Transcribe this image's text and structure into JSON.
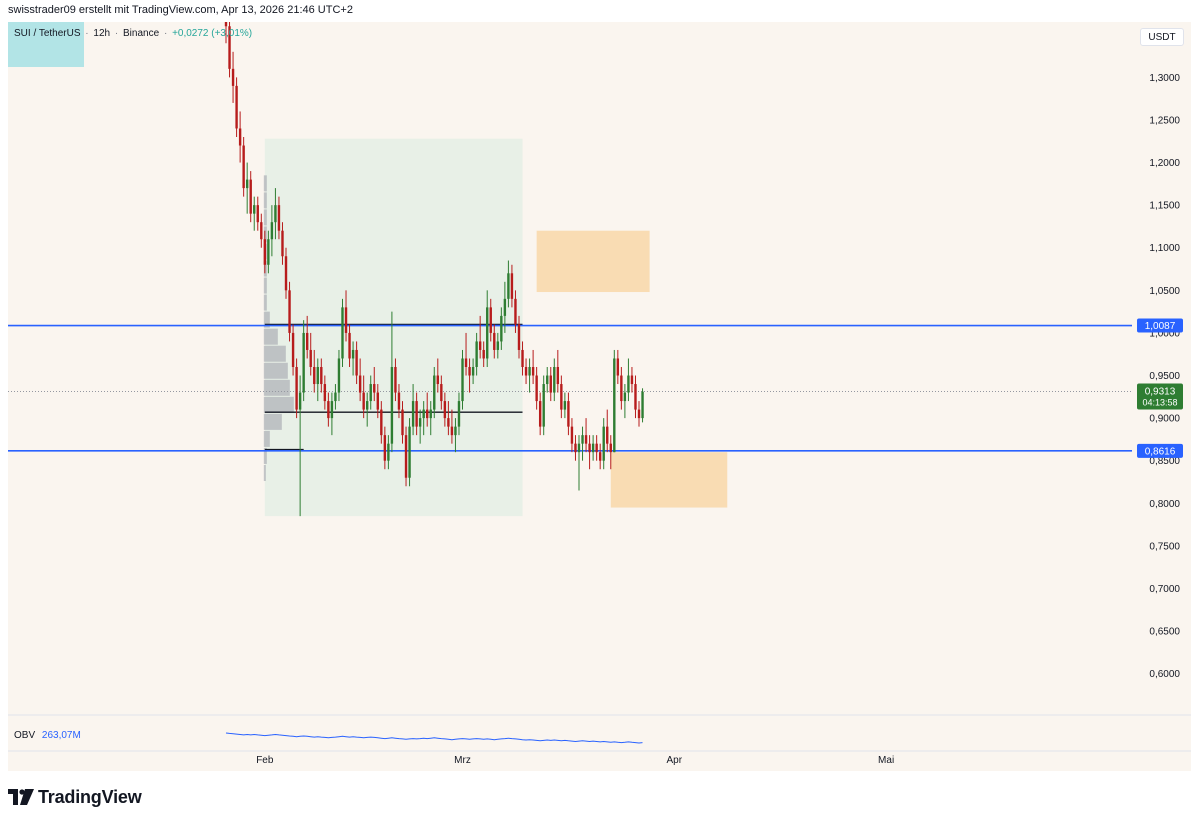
{
  "header": {
    "text": "swisstrader09 erstellt mit TradingView.com, Apr 13, 2026 21:46 UTC+2"
  },
  "legend": {
    "symbol": "SUI / TetherUS",
    "interval": "12h",
    "exchange": "Binance",
    "change": "+0,0272 (+3,01%)",
    "sep": "·"
  },
  "unit_button": "USDT",
  "obv": {
    "label": "OBV",
    "value": "263,07M"
  },
  "footer": {
    "brand": "TradingView"
  },
  "colors": {
    "background": "#faf5ef",
    "up": "#2e7d32",
    "down": "#b71c1c",
    "level": "#2962ff",
    "zone_orange": "#f8d7a8",
    "zone_green": "#e6efe5",
    "legend_box": "#b2e4e6",
    "price_label": "#2e7d32"
  },
  "chart_data": {
    "type": "candlestick",
    "symbol": "SUI / TetherUS",
    "interval": "12h",
    "ylim": [
      0.555,
      1.365
    ],
    "y_ticks": [
      "0,6000",
      "0,6500",
      "0,7000",
      "0,7500",
      "0,8000",
      "0,8500",
      "0,9000",
      "0,9500",
      "1,0000",
      "1,0500",
      "1,1000",
      "1,1500",
      "1,2000",
      "1,2500",
      "1,3000"
    ],
    "y_tick_values": [
      0.6,
      0.65,
      0.7,
      0.75,
      0.8,
      0.85,
      0.9,
      0.95,
      1.0,
      1.05,
      1.1,
      1.15,
      1.2,
      1.25,
      1.3
    ],
    "x_labels": [
      "Feb",
      "Mrz",
      "Apr",
      "Mai"
    ],
    "x_label_index": [
      11,
      67,
      127,
      187
    ],
    "levels": [
      {
        "value": 1.0087,
        "label": "1,0087"
      },
      {
        "value": 0.8616,
        "label": "0,8616"
      }
    ],
    "current_price": {
      "value": 0.9313,
      "label": "0,9313",
      "countdown": "04:13:58"
    },
    "zones": [
      {
        "kind": "green",
        "from_index": 11,
        "to_index": 84,
        "y_low": 0.785,
        "y_high": 1.228
      },
      {
        "kind": "orange",
        "from_index": 88,
        "to_index": 120,
        "y_low": 1.048,
        "y_high": 1.12
      },
      {
        "kind": "orange",
        "from_index": 109,
        "to_index": 142,
        "y_low": 0.795,
        "y_high": 0.86
      }
    ],
    "range_lines": [
      {
        "y": 1.01,
        "from_index": 11,
        "to_index": 84
      },
      {
        "y": 0.907,
        "from_index": 11,
        "to_index": 84
      },
      {
        "y": 0.863,
        "from_index": 11,
        "to_index": 22
      }
    ],
    "volume_profile": [
      {
        "y": 0.835,
        "w": 2
      },
      {
        "y": 0.855,
        "w": 3
      },
      {
        "y": 0.875,
        "w": 6
      },
      {
        "y": 0.895,
        "w": 18
      },
      {
        "y": 0.915,
        "w": 30
      },
      {
        "y": 0.935,
        "w": 26
      },
      {
        "y": 0.955,
        "w": 24
      },
      {
        "y": 0.975,
        "w": 22
      },
      {
        "y": 0.995,
        "w": 14
      },
      {
        "y": 1.015,
        "w": 6
      },
      {
        "y": 1.035,
        "w": 3
      },
      {
        "y": 1.055,
        "w": 3
      },
      {
        "y": 1.075,
        "w": 3
      },
      {
        "y": 1.095,
        "w": 3
      },
      {
        "y": 1.115,
        "w": 3
      },
      {
        "y": 1.135,
        "w": 3
      },
      {
        "y": 1.155,
        "w": 3
      },
      {
        "y": 1.175,
        "w": 3
      }
    ],
    "candles": [
      [
        1.38,
        1.392,
        1.34,
        1.36
      ],
      [
        1.36,
        1.37,
        1.3,
        1.31
      ],
      [
        1.31,
        1.33,
        1.27,
        1.29
      ],
      [
        1.29,
        1.3,
        1.23,
        1.24
      ],
      [
        1.24,
        1.26,
        1.2,
        1.22
      ],
      [
        1.22,
        1.23,
        1.16,
        1.17
      ],
      [
        1.17,
        1.2,
        1.14,
        1.18
      ],
      [
        1.18,
        1.19,
        1.13,
        1.14
      ],
      [
        1.14,
        1.16,
        1.12,
        1.15
      ],
      [
        1.15,
        1.16,
        1.12,
        1.13
      ],
      [
        1.13,
        1.14,
        1.1,
        1.11
      ],
      [
        1.11,
        1.12,
        1.07,
        1.08
      ],
      [
        1.08,
        1.12,
        1.07,
        1.11
      ],
      [
        1.11,
        1.15,
        1.09,
        1.13
      ],
      [
        1.13,
        1.17,
        1.11,
        1.15
      ],
      [
        1.15,
        1.16,
        1.11,
        1.12
      ],
      [
        1.12,
        1.13,
        1.08,
        1.09
      ],
      [
        1.09,
        1.1,
        1.04,
        1.05
      ],
      [
        1.05,
        1.06,
        0.99,
        1.0
      ],
      [
        1.0,
        1.01,
        0.95,
        0.96
      ],
      [
        0.96,
        0.97,
        0.9,
        0.91
      ],
      [
        0.91,
        0.95,
        0.785,
        0.93
      ],
      [
        0.93,
        1.015,
        0.92,
        1.0
      ],
      [
        1.0,
        1.02,
        0.97,
        0.98
      ],
      [
        0.98,
        1.0,
        0.95,
        0.96
      ],
      [
        0.96,
        0.98,
        0.93,
        0.94
      ],
      [
        0.94,
        0.97,
        0.92,
        0.96
      ],
      [
        0.96,
        0.97,
        0.93,
        0.94
      ],
      [
        0.94,
        0.95,
        0.91,
        0.92
      ],
      [
        0.92,
        0.93,
        0.89,
        0.9
      ],
      [
        0.9,
        0.93,
        0.88,
        0.92
      ],
      [
        0.92,
        0.94,
        0.91,
        0.93
      ],
      [
        0.93,
        0.98,
        0.92,
        0.97
      ],
      [
        0.97,
        1.04,
        0.96,
        1.03
      ],
      [
        1.03,
        1.05,
        0.99,
        1.0
      ],
      [
        1.0,
        1.01,
        0.96,
        0.97
      ],
      [
        0.97,
        0.99,
        0.95,
        0.98
      ],
      [
        0.98,
        0.99,
        0.94,
        0.95
      ],
      [
        0.95,
        0.97,
        0.92,
        0.93
      ],
      [
        0.93,
        0.95,
        0.9,
        0.91
      ],
      [
        0.91,
        0.93,
        0.89,
        0.92
      ],
      [
        0.92,
        0.95,
        0.91,
        0.94
      ],
      [
        0.94,
        0.96,
        0.92,
        0.93
      ],
      [
        0.93,
        0.94,
        0.9,
        0.91
      ],
      [
        0.91,
        0.92,
        0.87,
        0.88
      ],
      [
        0.88,
        0.89,
        0.84,
        0.85
      ],
      [
        0.85,
        0.88,
        0.84,
        0.87
      ],
      [
        0.87,
        1.025,
        0.86,
        0.96
      ],
      [
        0.96,
        0.97,
        0.92,
        0.93
      ],
      [
        0.93,
        0.94,
        0.9,
        0.91
      ],
      [
        0.91,
        0.92,
        0.87,
        0.88
      ],
      [
        0.88,
        0.89,
        0.82,
        0.83
      ],
      [
        0.83,
        0.9,
        0.82,
        0.89
      ],
      [
        0.89,
        0.94,
        0.88,
        0.92
      ],
      [
        0.92,
        0.93,
        0.88,
        0.89
      ],
      [
        0.89,
        0.91,
        0.87,
        0.9
      ],
      [
        0.9,
        0.92,
        0.88,
        0.91
      ],
      [
        0.91,
        0.93,
        0.89,
        0.9
      ],
      [
        0.9,
        0.92,
        0.88,
        0.91
      ],
      [
        0.91,
        0.96,
        0.9,
        0.95
      ],
      [
        0.95,
        0.97,
        0.93,
        0.94
      ],
      [
        0.94,
        0.95,
        0.91,
        0.92
      ],
      [
        0.92,
        0.93,
        0.89,
        0.9
      ],
      [
        0.9,
        0.92,
        0.88,
        0.89
      ],
      [
        0.89,
        0.91,
        0.87,
        0.88
      ],
      [
        0.88,
        0.9,
        0.86,
        0.89
      ],
      [
        0.89,
        0.93,
        0.88,
        0.92
      ],
      [
        0.92,
        0.98,
        0.91,
        0.97
      ],
      [
        0.97,
        1.0,
        0.95,
        0.96
      ],
      [
        0.96,
        0.97,
        0.93,
        0.95
      ],
      [
        0.95,
        0.97,
        0.94,
        0.96
      ],
      [
        0.96,
        1.0,
        0.95,
        0.99
      ],
      [
        0.99,
        1.02,
        0.97,
        0.98
      ],
      [
        0.98,
        0.99,
        0.96,
        0.97
      ],
      [
        0.97,
        1.05,
        0.96,
        1.03
      ],
      [
        1.03,
        1.04,
        0.99,
        1.0
      ],
      [
        1.0,
        1.01,
        0.97,
        0.98
      ],
      [
        0.98,
        1.0,
        0.97,
        0.99
      ],
      [
        0.99,
        1.03,
        0.98,
        1.02
      ],
      [
        1.02,
        1.06,
        1.0,
        1.04
      ],
      [
        1.04,
        1.085,
        1.03,
        1.07
      ],
      [
        1.07,
        1.08,
        1.03,
        1.04
      ],
      [
        1.04,
        1.05,
        1.0,
        1.01
      ],
      [
        1.01,
        1.02,
        0.97,
        0.98
      ],
      [
        0.98,
        0.99,
        0.95,
        0.96
      ],
      [
        0.96,
        0.97,
        0.94,
        0.95
      ],
      [
        0.95,
        0.97,
        0.93,
        0.96
      ],
      [
        0.96,
        0.98,
        0.94,
        0.95
      ],
      [
        0.95,
        0.96,
        0.91,
        0.92
      ],
      [
        0.92,
        0.93,
        0.88,
        0.89
      ],
      [
        0.89,
        0.95,
        0.88,
        0.94
      ],
      [
        0.94,
        0.96,
        0.93,
        0.95
      ],
      [
        0.95,
        0.96,
        0.92,
        0.93
      ],
      [
        0.93,
        0.97,
        0.92,
        0.96
      ],
      [
        0.96,
        0.98,
        0.93,
        0.94
      ],
      [
        0.94,
        0.95,
        0.9,
        0.91
      ],
      [
        0.91,
        0.93,
        0.9,
        0.92
      ],
      [
        0.92,
        0.93,
        0.88,
        0.89
      ],
      [
        0.89,
        0.9,
        0.86,
        0.87
      ],
      [
        0.87,
        0.88,
        0.85,
        0.86
      ],
      [
        0.86,
        0.88,
        0.815,
        0.87
      ],
      [
        0.87,
        0.89,
        0.85,
        0.88
      ],
      [
        0.88,
        0.9,
        0.86,
        0.87
      ],
      [
        0.87,
        0.88,
        0.84,
        0.86
      ],
      [
        0.86,
        0.88,
        0.85,
        0.87
      ],
      [
        0.87,
        0.88,
        0.85,
        0.86
      ],
      [
        0.86,
        0.87,
        0.84,
        0.85
      ],
      [
        0.85,
        0.9,
        0.84,
        0.89
      ],
      [
        0.89,
        0.91,
        0.86,
        0.87
      ],
      [
        0.87,
        0.88,
        0.84,
        0.86
      ],
      [
        0.86,
        0.98,
        0.86,
        0.97
      ],
      [
        0.97,
        0.98,
        0.94,
        0.95
      ],
      [
        0.95,
        0.96,
        0.91,
        0.92
      ],
      [
        0.92,
        0.94,
        0.9,
        0.93
      ],
      [
        0.93,
        0.97,
        0.92,
        0.95
      ],
      [
        0.95,
        0.96,
        0.93,
        0.94
      ],
      [
        0.94,
        0.95,
        0.9,
        0.91
      ],
      [
        0.91,
        0.92,
        0.89,
        0.9
      ],
      [
        0.9,
        0.935,
        0.895,
        0.931
      ]
    ]
  }
}
